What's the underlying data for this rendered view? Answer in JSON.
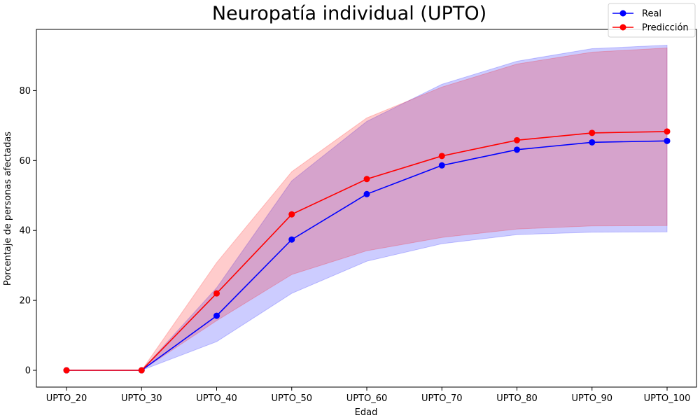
{
  "chart_data": {
    "type": "line",
    "title": "Neuropatía individual (UPTO)",
    "xlabel": "Edad",
    "ylabel": "Porcentaje de personas afectadas",
    "categories": [
      "UPTO_20",
      "UPTO_30",
      "UPTO_40",
      "UPTO_50",
      "UPTO_60",
      "UPTO_70",
      "UPTO_80",
      "UPTO_90",
      "UPTO_100"
    ],
    "ylim": [
      -4.8,
      97.5
    ],
    "yticks": [
      0,
      20,
      40,
      60,
      80
    ],
    "grid": false,
    "legend_position": "top-right",
    "series": [
      {
        "name": "Real",
        "color": "#0000ff",
        "band_color": "#0000ff",
        "values": [
          0,
          0,
          15.6,
          37.4,
          50.4,
          58.6,
          63.1,
          65.2,
          65.6
        ],
        "lower": [
          0,
          0,
          8.2,
          22.0,
          31.2,
          36.2,
          38.8,
          39.5,
          39.6
        ],
        "upper": [
          0,
          0,
          23.6,
          54.2,
          71.2,
          81.8,
          88.4,
          92.0,
          93.0
        ]
      },
      {
        "name": "Predicción",
        "color": "#ff0000",
        "band_color": "#ff0000",
        "values": [
          0,
          0,
          22.0,
          44.6,
          54.7,
          61.3,
          65.8,
          67.9,
          68.3
        ],
        "lower": [
          0,
          0,
          14.2,
          27.4,
          34.2,
          38.0,
          40.4,
          41.3,
          41.4
        ],
        "upper": [
          0,
          0,
          30.8,
          56.8,
          72.2,
          81.0,
          87.6,
          91.0,
          92.2
        ]
      }
    ]
  }
}
